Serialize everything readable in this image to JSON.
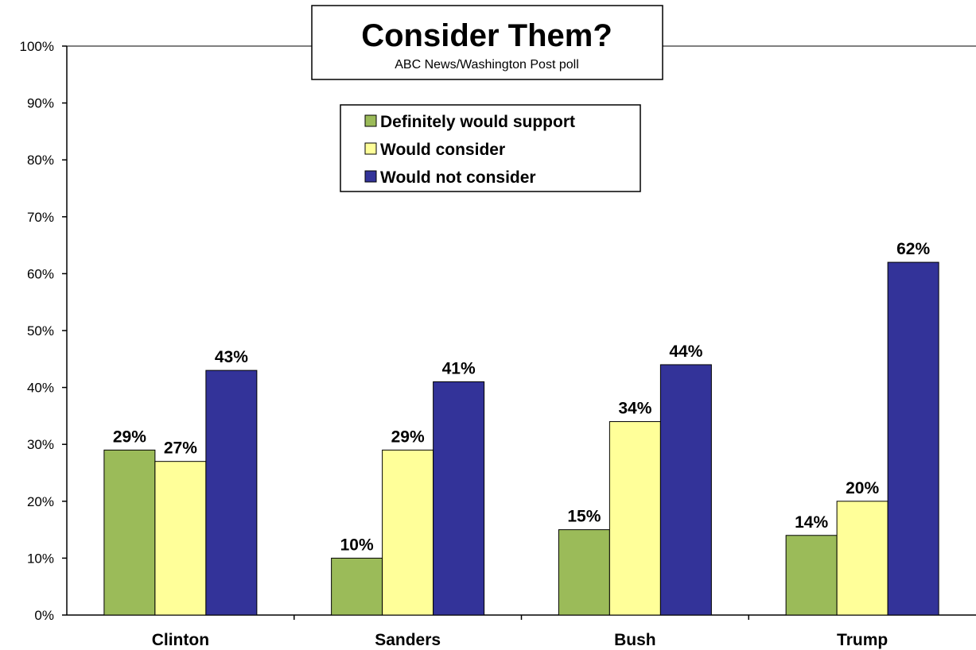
{
  "chart_data": {
    "type": "bar",
    "title": "Consider Them?",
    "subtitle": "ABC News/Washington  Post poll",
    "categories": [
      "Clinton",
      "Sanders",
      "Bush",
      "Trump"
    ],
    "series": [
      {
        "name": "Definitely would support",
        "color": "#9bbb59",
        "values": [
          29,
          10,
          15,
          14
        ]
      },
      {
        "name": "Would consider",
        "color": "#ffff99",
        "values": [
          27,
          29,
          34,
          20
        ]
      },
      {
        "name": "Would not consider",
        "color": "#333399",
        "values": [
          43,
          41,
          44,
          62
        ]
      }
    ],
    "y_ticks": [
      "0%",
      "10%",
      "20%",
      "30%",
      "40%",
      "50%",
      "60%",
      "70%",
      "80%",
      "90%",
      "100%"
    ],
    "ylim": [
      0,
      100
    ],
    "value_suffix": "%",
    "legend_position": "top-center",
    "grid": false
  }
}
